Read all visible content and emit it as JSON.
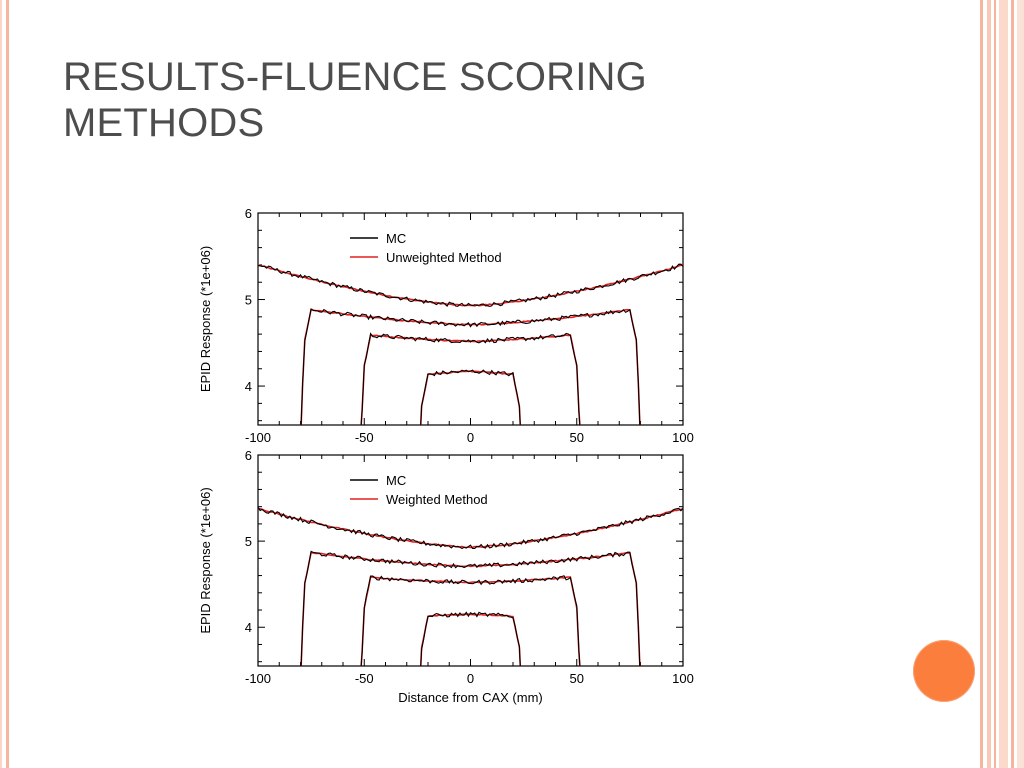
{
  "slide": {
    "title": "RESULTS-FLUENCE SCORING METHODS",
    "colors": {
      "title_text": "#4d4d4d",
      "border_accent": "#f6b59c",
      "dot": "#fb7e3d",
      "mc_line": "#000000",
      "method_line": "#e02020"
    },
    "decorations": [
      "left-border",
      "right-stripes",
      "orange-circle"
    ]
  },
  "chart_data": [
    {
      "type": "line",
      "title": "",
      "xlabel": "",
      "ylabel": "EPID Response (*1e+06)",
      "xlim": [
        -100,
        100
      ],
      "ylim": [
        3.55,
        6
      ],
      "xticks": [
        -100,
        -50,
        0,
        50,
        100
      ],
      "yticks": [
        4,
        5,
        6
      ],
      "legend_position": "top-center",
      "grid": false,
      "series": [
        {
          "name": "MC",
          "color": "#000000"
        },
        {
          "name": "Unweighted Method",
          "color": "#e02020"
        }
      ],
      "profiles": [
        {
          "half_width": 100,
          "center": 4.93,
          "edge": 5.4
        },
        {
          "half_width": 80,
          "center": 4.71,
          "edge": 4.9
        },
        {
          "half_width": 52,
          "center": 4.52,
          "edge": 4.6
        },
        {
          "half_width": 25,
          "center": 4.17,
          "edge": 4.12
        }
      ]
    },
    {
      "type": "line",
      "title": "",
      "xlabel": "Distance from CAX (mm)",
      "ylabel": "EPID Response (*1e+06)",
      "xlim": [
        -100,
        100
      ],
      "ylim": [
        3.55,
        6
      ],
      "xticks": [
        -100,
        -50,
        0,
        50,
        100
      ],
      "yticks": [
        4,
        5,
        6
      ],
      "legend_position": "top-center",
      "grid": false,
      "series": [
        {
          "name": "MC",
          "color": "#000000"
        },
        {
          "name": "Weighted Method",
          "color": "#e02020"
        }
      ],
      "profiles": [
        {
          "half_width": 100,
          "center": 4.93,
          "edge": 5.38
        },
        {
          "half_width": 80,
          "center": 4.71,
          "edge": 4.88
        },
        {
          "half_width": 52,
          "center": 4.52,
          "edge": 4.59
        },
        {
          "half_width": 25,
          "center": 4.15,
          "edge": 4.12
        }
      ]
    }
  ]
}
